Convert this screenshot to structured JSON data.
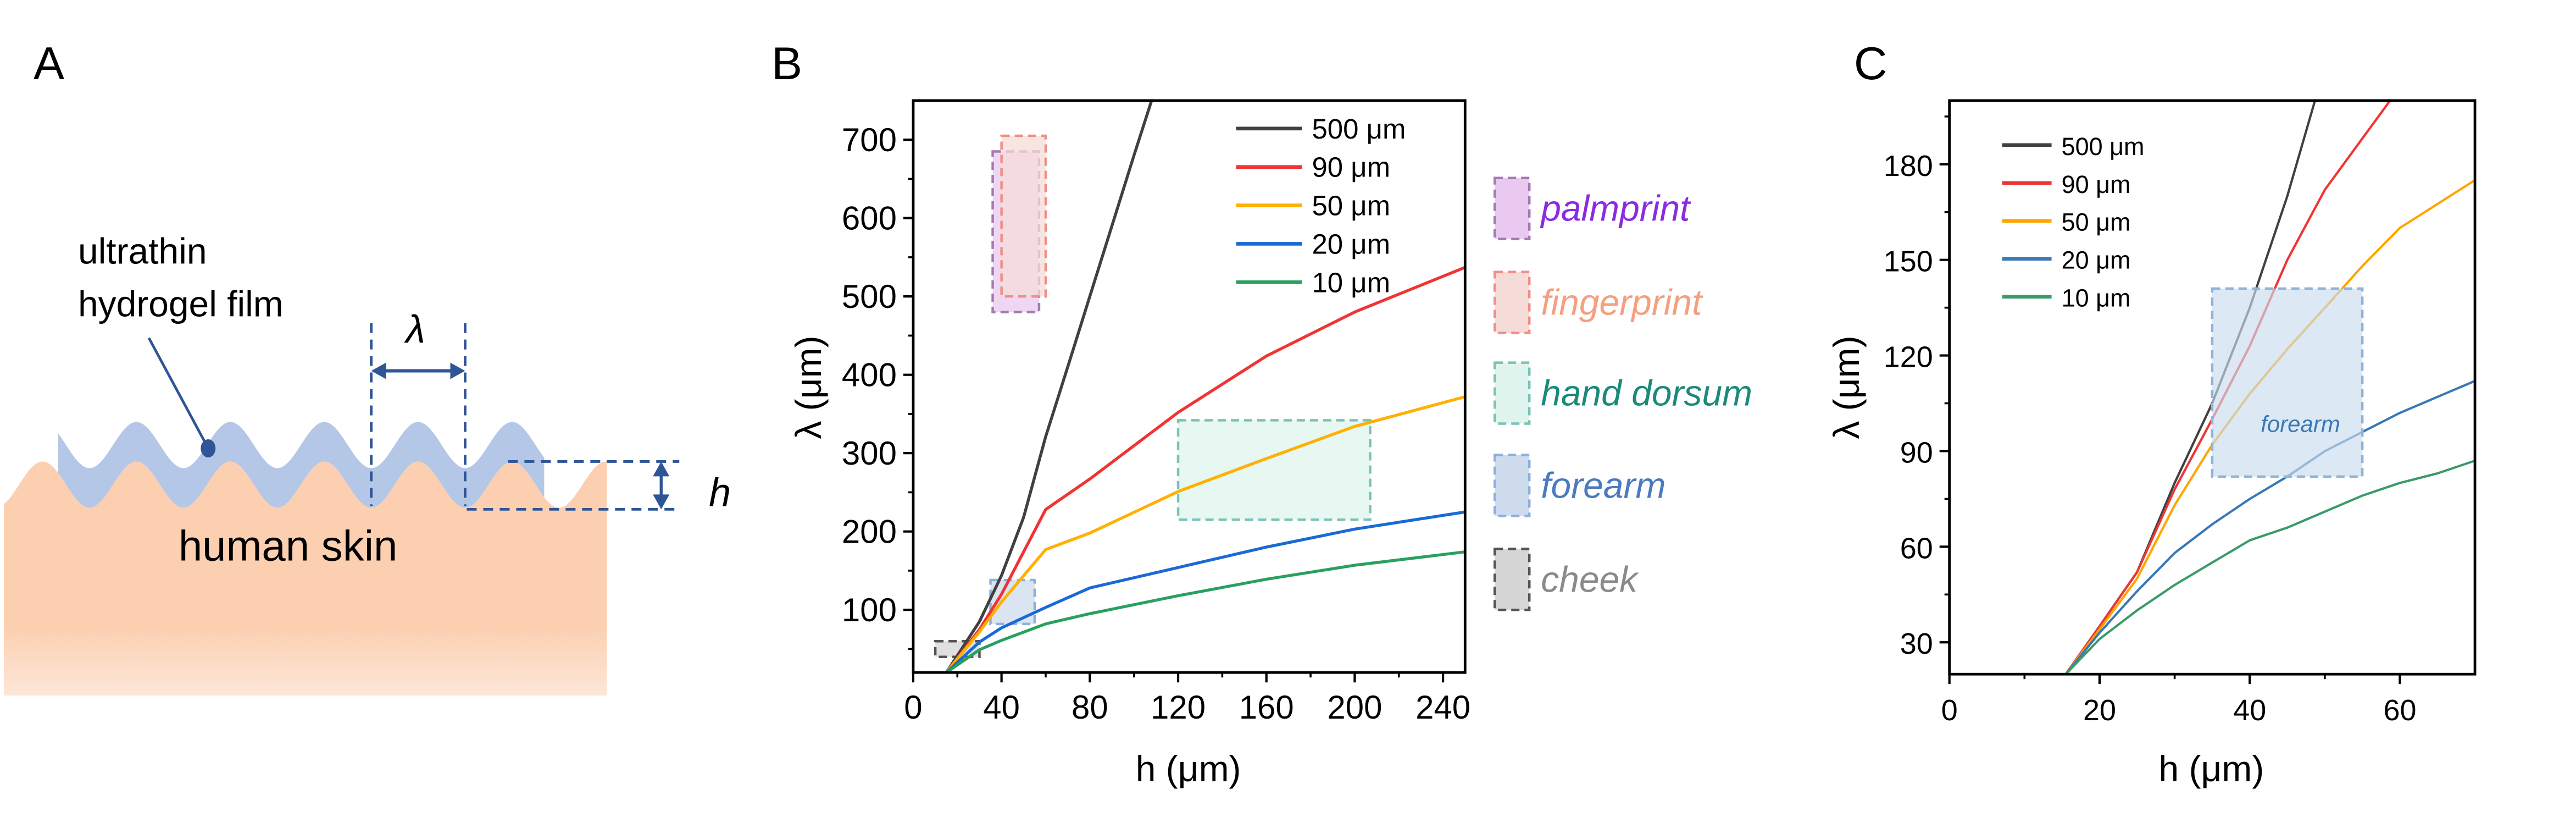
{
  "panel_labels": {
    "a": "A",
    "b": "B",
    "c": "C"
  },
  "schematic": {
    "film_label_line1": "ultrathin",
    "film_label_line2": "hydrogel film",
    "wavelength_symbol": "λ",
    "height_symbol": "h",
    "skin_label": "human skin",
    "colors": {
      "film": "#b4c7e7",
      "skin": "#fbcfb0",
      "annotation": "#2f5597"
    }
  },
  "chart_data": [
    {
      "type": "line",
      "panel": "B",
      "xlabel": "h (μm)",
      "ylabel": "λ (μm)",
      "xlim": [
        0,
        250
      ],
      "ylim": [
        20,
        750
      ],
      "xticks": [
        0,
        40,
        80,
        120,
        160,
        200,
        240
      ],
      "yticks": [
        100,
        200,
        300,
        400,
        500,
        600,
        700
      ],
      "legend_placement": "top-right",
      "series": [
        {
          "name": "500 μm",
          "color": "#404040",
          "x": [
            15,
            30,
            40,
            50,
            60,
            70,
            80,
            90,
            100,
            108
          ],
          "y": [
            20,
            85,
            144,
            218,
            321,
            410,
            500,
            590,
            680,
            750
          ]
        },
        {
          "name": "90 μm",
          "color": "#f03434",
          "x": [
            15,
            30,
            40,
            60,
            80,
            120,
            160,
            200,
            250
          ],
          "y": [
            20,
            75,
            120,
            228,
            267,
            352,
            424,
            480,
            537
          ]
        },
        {
          "name": "50 μm",
          "color": "#ffb000",
          "x": [
            15,
            30,
            40,
            60,
            80,
            120,
            160,
            200,
            250
          ],
          "y": [
            20,
            72,
            110,
            177,
            198,
            251,
            293,
            334,
            372
          ]
        },
        {
          "name": "20 μm",
          "color": "#1a6ad6",
          "x": [
            15,
            30,
            40,
            60,
            80,
            120,
            160,
            200,
            250
          ],
          "y": [
            20,
            59,
            77,
            103,
            128,
            154,
            180,
            203,
            225
          ]
        },
        {
          "name": "10 μm",
          "color": "#2aa060",
          "x": [
            15,
            30,
            40,
            60,
            80,
            120,
            160,
            200,
            250
          ],
          "y": [
            20,
            49,
            61,
            82,
            95,
            118,
            139,
            157,
            174
          ]
        }
      ],
      "regions": [
        {
          "name": "palmprint",
          "color": "#8a2be2",
          "fill": "#e9c9ef",
          "stroke": "#a57ab0",
          "x": [
            36,
            57
          ],
          "y": [
            480,
            685
          ]
        },
        {
          "name": "fingerprint",
          "color": "#f4a080",
          "fill": "#f6dcd8",
          "stroke": "#ef8f88",
          "x": [
            40,
            60
          ],
          "y": [
            500,
            705
          ]
        },
        {
          "name": "hand dorsum",
          "color": "#1a8a7a",
          "fill": "#dff4ec",
          "stroke": "#7cc2b6",
          "x": [
            120,
            207
          ],
          "y": [
            215,
            342
          ]
        },
        {
          "name": "forearm",
          "color": "#4a7ac0",
          "fill": "#cfdcee",
          "stroke": "#8fb0dc",
          "x": [
            35,
            55
          ],
          "y": [
            82,
            138
          ]
        },
        {
          "name": "cheek",
          "color": "#8a8a8a",
          "fill": "#d6d6d6",
          "stroke": "#555555",
          "x": [
            10,
            30
          ],
          "y": [
            40,
            60
          ]
        }
      ]
    },
    {
      "type": "line",
      "panel": "C",
      "xlabel": "h (μm)",
      "ylabel": "λ (μm)",
      "xlim": [
        0,
        70
      ],
      "ylim": [
        20,
        200
      ],
      "xticks": [
        0,
        20,
        40,
        60
      ],
      "yticks": [
        30,
        60,
        90,
        120,
        150,
        180
      ],
      "legend_placement": "top-left",
      "series": [
        {
          "name": "500 μm",
          "color": "#404040",
          "x": [
            15.5,
            20,
            25,
            30,
            35,
            40,
            45,
            48.7
          ],
          "y": [
            20,
            35,
            52,
            80,
            105,
            135,
            170,
            200
          ]
        },
        {
          "name": "90 μm",
          "color": "#f03434",
          "x": [
            15.5,
            20,
            25,
            30,
            35,
            40,
            45,
            50,
            58.7
          ],
          "y": [
            20,
            35,
            52,
            78,
            100,
            123,
            150,
            172,
            200
          ]
        },
        {
          "name": "50 μm",
          "color": "#ffa500",
          "x": [
            15.5,
            20,
            25,
            30,
            35,
            40,
            45,
            50,
            55,
            60,
            70
          ],
          "y": [
            20,
            34,
            50,
            73,
            92,
            108,
            122,
            135,
            148,
            160,
            175
          ]
        },
        {
          "name": "20 μm",
          "color": "#3a78b5",
          "x": [
            15.5,
            20,
            25,
            30,
            35,
            40,
            45,
            50,
            55,
            60,
            65,
            70
          ],
          "y": [
            20,
            33,
            46,
            58,
            67,
            75,
            82,
            90,
            96,
            102,
            107,
            112
          ]
        },
        {
          "name": "10 μm",
          "color": "#3a9a6a",
          "x": [
            15.5,
            20,
            25,
            30,
            35,
            40,
            45,
            50,
            55,
            60,
            65,
            70
          ],
          "y": [
            20,
            31,
            40,
            48,
            55,
            62,
            66,
            71,
            76,
            80,
            83,
            87
          ]
        }
      ],
      "regions": [
        {
          "name": "forearm",
          "color": "#3a78b5",
          "fill": "#c9dcec",
          "stroke": "#8fb5d9",
          "x": [
            35,
            55
          ],
          "y": [
            82,
            141
          ]
        }
      ]
    }
  ]
}
